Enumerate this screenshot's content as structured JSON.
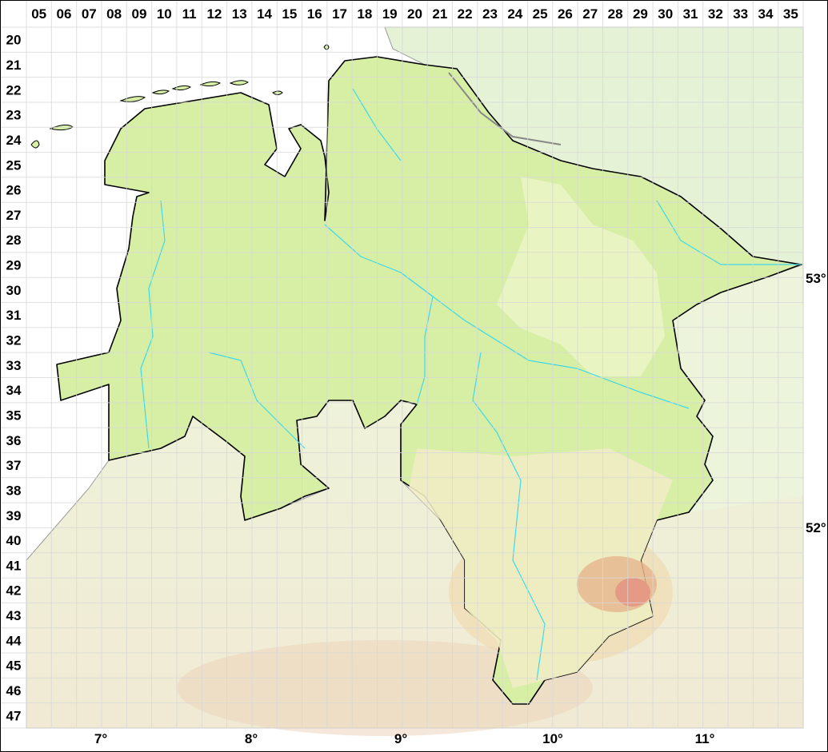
{
  "map": {
    "grid_columns": [
      "05",
      "06",
      "07",
      "08",
      "09",
      "10",
      "11",
      "12",
      "13",
      "14",
      "15",
      "16",
      "17",
      "18",
      "19",
      "20",
      "21",
      "22",
      "23",
      "24",
      "25",
      "26",
      "27",
      "28",
      "29",
      "30",
      "31",
      "32",
      "33",
      "34",
      "35"
    ],
    "grid_rows": [
      "20",
      "21",
      "22",
      "23",
      "24",
      "25",
      "26",
      "27",
      "28",
      "29",
      "30",
      "31",
      "32",
      "33",
      "34",
      "35",
      "36",
      "37",
      "38",
      "39",
      "40",
      "41",
      "42",
      "43",
      "44",
      "45",
      "46",
      "47"
    ],
    "longitude_labels": [
      "7°",
      "8°",
      "9°",
      "10°",
      "11°"
    ],
    "latitude_labels": [
      "53°",
      "52°"
    ],
    "colors": {
      "region_fill": "#d6efa4",
      "region_outline": "#000000",
      "surrounding_land_north": "#e6f2d6",
      "surrounding_land_south": "#f3f6de",
      "highland": "#e8c8a0",
      "peak": "#e49a84",
      "rivers": "#40d8e8",
      "grid": "#dddddd",
      "sea": "#ffffff"
    }
  }
}
